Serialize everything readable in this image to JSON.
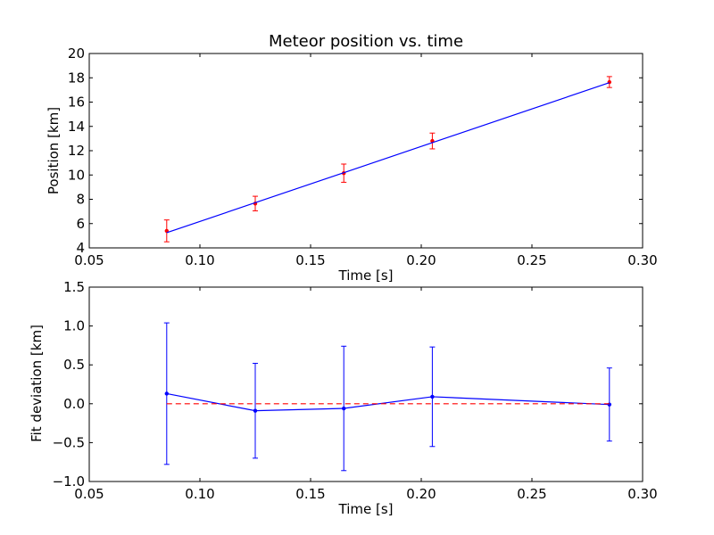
{
  "chart_data": [
    {
      "type": "scatter",
      "title": "Meteor position vs. time",
      "xlabel": "Time [s]",
      "ylabel": "Position [km]",
      "xlim": [
        0.05,
        0.3
      ],
      "ylim": [
        4,
        20
      ],
      "xticks": [
        "0.05",
        "0.10",
        "0.15",
        "0.20",
        "0.25",
        "0.30"
      ],
      "yticks": [
        "4",
        "6",
        "8",
        "10",
        "12",
        "14",
        "16",
        "18",
        "20"
      ],
      "grid": false,
      "series": [
        {
          "kind": "errorbar",
          "color": "#ff0000",
          "x": [
            0.085,
            0.125,
            0.165,
            0.205,
            0.285
          ],
          "y": [
            5.4,
            7.65,
            10.15,
            12.8,
            17.65
          ],
          "yerr": [
            0.9,
            0.6,
            0.75,
            0.65,
            0.45
          ]
        },
        {
          "kind": "line",
          "color": "#0000ff",
          "x": [
            0.085,
            0.285
          ],
          "y": [
            5.25,
            17.6
          ]
        }
      ]
    },
    {
      "type": "scatter",
      "title": "",
      "xlabel": "Time [s]",
      "ylabel": "Fit deviation [km]",
      "xlim": [
        0.05,
        0.3
      ],
      "ylim": [
        -1.0,
        1.5
      ],
      "xticks": [
        "0.05",
        "0.10",
        "0.15",
        "0.20",
        "0.25",
        "0.30"
      ],
      "yticks": [
        "−1.0",
        "−0.5",
        "0.0",
        "0.5",
        "1.0",
        "1.5"
      ],
      "grid": false,
      "series": [
        {
          "kind": "errorbar_line",
          "color": "#0000ff",
          "x": [
            0.085,
            0.125,
            0.165,
            0.205,
            0.285
          ],
          "y": [
            0.13,
            -0.09,
            -0.06,
            0.09,
            -0.01
          ],
          "yerr": [
            0.91,
            0.61,
            0.8,
            0.64,
            0.47
          ]
        },
        {
          "kind": "dashed_line",
          "color": "#ff0000",
          "x": [
            0.085,
            0.285
          ],
          "y": [
            0.0,
            0.0
          ]
        }
      ]
    }
  ]
}
